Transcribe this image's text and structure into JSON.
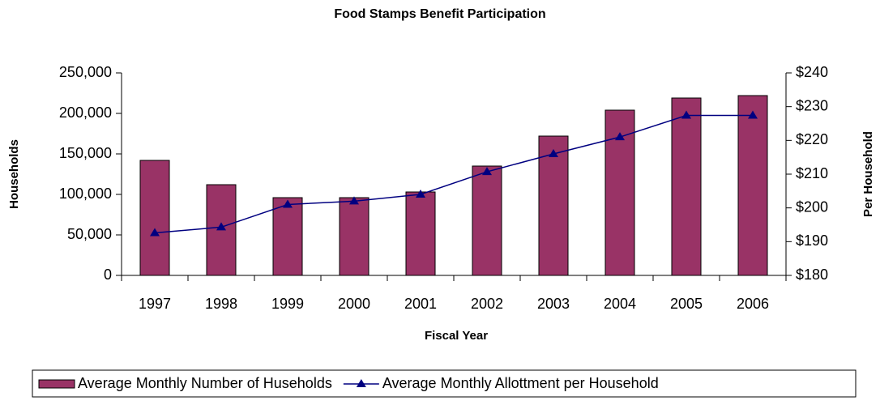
{
  "chart_data": {
    "type": "bar",
    "title": "Food Stamps Benefit Participation",
    "x_label": "Fiscal Year",
    "y_label": "Households",
    "y2_label": "Per Household",
    "categories": [
      "1997",
      "1998",
      "1999",
      "2000",
      "2001",
      "2002",
      "2003",
      "2004",
      "2005",
      "2006"
    ],
    "series": [
      {
        "name": "Average Monthly Number of Huseholds",
        "type": "bar",
        "color": "#993366",
        "values": [
          142000,
          112000,
          96000,
          96000,
          103000,
          135000,
          172000,
          204000,
          219000,
          222000
        ]
      },
      {
        "name": "Average Monthly Allottment per Household",
        "type": "line",
        "axis": "y2",
        "color": "#000080",
        "values": [
          192.6,
          194.3,
          201,
          202,
          204,
          210.7,
          216,
          221,
          227.4,
          227.4
        ]
      }
    ],
    "ylim": [
      0,
      250000
    ],
    "yticks": [
      0,
      {
        "value": 50000,
        "label": "50,000"
      },
      {
        "value": 100000,
        "label": "100,000"
      },
      {
        "value": 150000,
        "label": "150,000"
      },
      {
        "value": 200000,
        "label": "200,000"
      },
      {
        "value": 250000,
        "label": "250,000"
      }
    ],
    "y2lim": [
      180,
      240
    ],
    "y2ticks": [
      {
        "value": 180,
        "label": "$180"
      },
      {
        "value": 190,
        "label": "$190"
      },
      {
        "value": 200,
        "label": "$200"
      },
      {
        "value": 210,
        "label": "$210"
      },
      {
        "value": 220,
        "label": "$220"
      },
      {
        "value": 230,
        "label": "$230"
      },
      {
        "value": 240,
        "label": "$240"
      }
    ],
    "legend": "bottom"
  }
}
